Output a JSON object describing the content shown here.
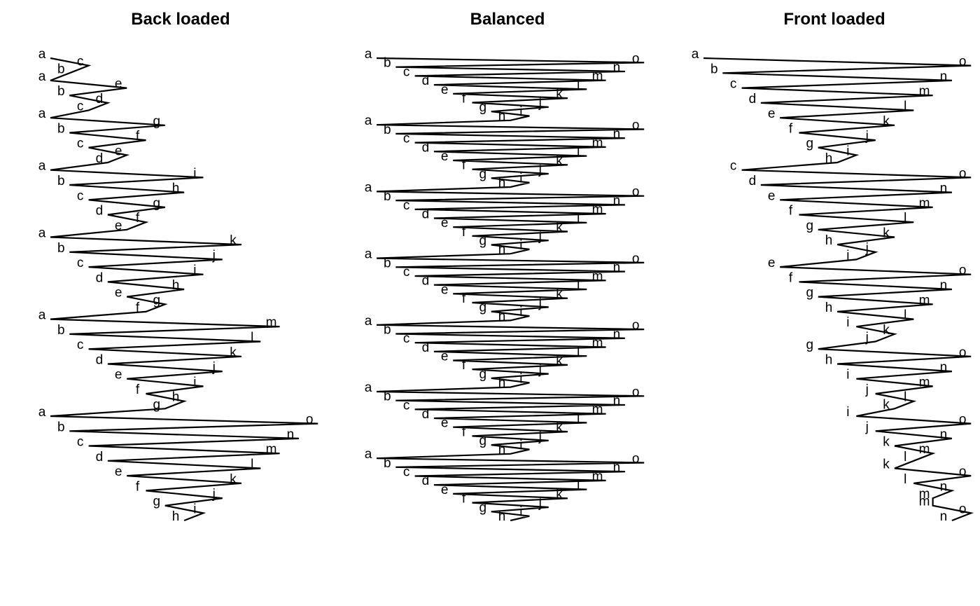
{
  "panels": [
    {
      "id": "back-loaded",
      "title": "Back loaded",
      "rows": [
        [
          "a",
          "b",
          "c"
        ],
        [
          "a",
          "b",
          "c",
          "d",
          "e"
        ],
        [
          "a",
          "b",
          "c",
          "d",
          "e",
          "f",
          "g"
        ],
        [
          "a",
          "b",
          "c",
          "d",
          "e",
          "f",
          "g",
          "h",
          "i"
        ],
        [
          "a",
          "b",
          "c",
          "d",
          "e",
          "f",
          "g",
          "h",
          "i",
          "j",
          "k"
        ],
        [
          "a",
          "b",
          "c",
          "d",
          "e",
          "f",
          "g",
          "h",
          "i",
          "j",
          "k",
          "l",
          "m"
        ],
        [
          "a",
          "b",
          "c",
          "d",
          "e",
          "f",
          "g",
          "h",
          "i",
          "j",
          "k",
          "l",
          "m",
          "n",
          "o"
        ]
      ]
    },
    {
      "id": "balanced",
      "title": "Balanced",
      "rows": [
        [
          "a",
          "b",
          "c",
          "d",
          "e",
          "f",
          "g",
          "h",
          "i",
          "j",
          "k",
          "l",
          "m",
          "n",
          "o"
        ],
        [
          "a",
          "b",
          "c",
          "d",
          "e",
          "f",
          "g",
          "h",
          "i",
          "j",
          "k",
          "l",
          "m",
          "n",
          "o"
        ],
        [
          "a",
          "b",
          "c",
          "d",
          "e",
          "f",
          "g",
          "h",
          "i",
          "j",
          "k",
          "l",
          "m",
          "n",
          "o"
        ],
        [
          "a",
          "b",
          "c",
          "d",
          "e",
          "f",
          "g",
          "h",
          "i",
          "j",
          "k",
          "l",
          "m",
          "n",
          "o"
        ],
        [
          "a",
          "b",
          "c",
          "d",
          "e",
          "f",
          "g",
          "h",
          "i",
          "j",
          "k",
          "l",
          "m",
          "n",
          "o"
        ],
        [
          "a",
          "b",
          "c",
          "d",
          "e",
          "f",
          "g",
          "h",
          "i",
          "j",
          "k",
          "l",
          "m",
          "n",
          "o"
        ],
        [
          "a",
          "b",
          "c",
          "d",
          "e",
          "f",
          "g",
          "h",
          "i",
          "j",
          "k",
          "l",
          "m",
          "n",
          "o"
        ]
      ]
    },
    {
      "id": "front-loaded",
      "title": "Front loaded",
      "rows": [
        [
          "a",
          "b",
          "c",
          "d",
          "e",
          "f",
          "g",
          "h",
          "i",
          "j",
          "k",
          "l",
          "m",
          "n",
          "o"
        ],
        [
          "c",
          "d",
          "e",
          "f",
          "g",
          "h",
          "i",
          "j",
          "k",
          "l",
          "m",
          "n",
          "o"
        ],
        [
          "e",
          "f",
          "g",
          "h",
          "i",
          "j",
          "k",
          "l",
          "m",
          "n",
          "o"
        ],
        [
          "g",
          "h",
          "i",
          "j",
          "k",
          "l",
          "m",
          "n",
          "o"
        ],
        [
          "i",
          "j",
          "k",
          "l",
          "m",
          "n",
          "o"
        ],
        [
          "k",
          "l",
          "m",
          "n",
          "o"
        ],
        [
          "m",
          "n",
          "o"
        ]
      ]
    }
  ]
}
